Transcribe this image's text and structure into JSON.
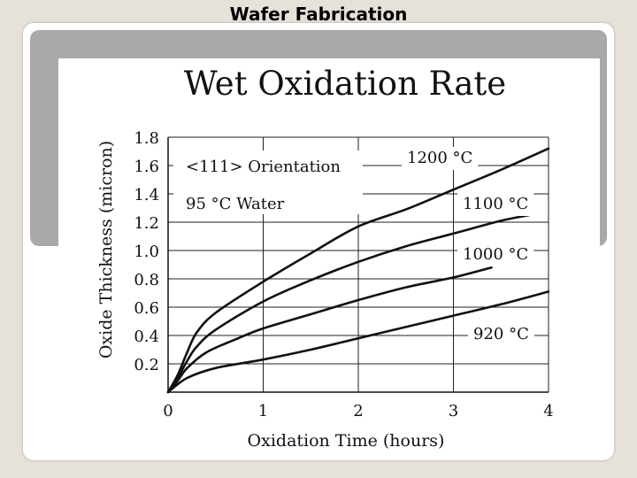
{
  "slide": {
    "title": "Wafer Fabrication"
  },
  "chart_data": {
    "type": "line",
    "title": "Wet Oxidation Rate",
    "xlabel": "Oxidation Time (hours)",
    "ylabel": "Oxide Thickness (micron)",
    "xlim": [
      0,
      4
    ],
    "ylim": [
      0,
      1.8
    ],
    "xticks": [
      0,
      1,
      2,
      3,
      4
    ],
    "yticks": [
      0.2,
      0.4,
      0.6,
      0.8,
      1.0,
      1.2,
      1.4,
      1.6,
      1.8
    ],
    "ytick_labels": [
      "0.2",
      "0.4",
      "0.6",
      "0.8",
      "1.0",
      "1.2",
      "1.4",
      "1.6",
      "1.8"
    ],
    "xtick_labels": [
      "0",
      "1",
      "2",
      "3",
      "4"
    ],
    "annotations": [
      "<111> Orientation",
      "95 °C Water"
    ],
    "grid": true,
    "line_color": "#111111",
    "series": [
      {
        "name": "1200 °C",
        "x": [
          0,
          0.1,
          0.2,
          0.3,
          0.5,
          1,
          1.5,
          2,
          2.5,
          3,
          3.5,
          4
        ],
        "y": [
          0,
          0.12,
          0.28,
          0.42,
          0.56,
          0.78,
          0.98,
          1.17,
          1.29,
          1.43,
          1.57,
          1.72
        ]
      },
      {
        "name": "1100 °C",
        "x": [
          0,
          0.1,
          0.2,
          0.3,
          0.5,
          1,
          1.5,
          2,
          2.5,
          3,
          3.5,
          3.8
        ],
        "y": [
          0,
          0.1,
          0.22,
          0.32,
          0.44,
          0.64,
          0.79,
          0.92,
          1.03,
          1.12,
          1.21,
          1.25
        ]
      },
      {
        "name": "1000 °C",
        "x": [
          0,
          0.1,
          0.2,
          0.4,
          0.7,
          1,
          1.5,
          2,
          2.5,
          3,
          3.4
        ],
        "y": [
          0,
          0.08,
          0.17,
          0.28,
          0.37,
          0.45,
          0.55,
          0.65,
          0.74,
          0.81,
          0.88
        ]
      },
      {
        "name": "920 °C",
        "x": [
          0,
          0.2,
          0.5,
          1,
          1.5,
          2,
          2.5,
          3,
          3.5,
          4
        ],
        "y": [
          0,
          0.1,
          0.17,
          0.23,
          0.3,
          0.38,
          0.46,
          0.54,
          0.62,
          0.71
        ]
      }
    ]
  }
}
